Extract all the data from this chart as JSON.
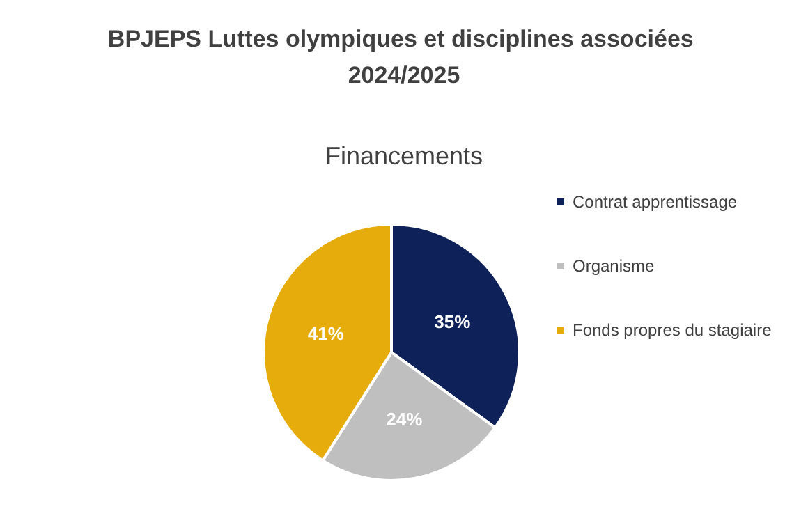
{
  "chart_data": {
    "type": "pie",
    "title": "BPJEPS Luttes olympiques et disciplines associées 2024/2025",
    "subtitle": "Financements",
    "categories": [
      "Contrat apprentissage",
      "Organisme",
      "Fonds propres du stagiaire"
    ],
    "values": [
      35,
      24,
      41
    ],
    "colors": [
      "#0e2158",
      "#bfbfbf",
      "#e5ac0c"
    ],
    "value_labels": [
      "35%",
      "24%",
      "41%"
    ],
    "legend": "right"
  }
}
